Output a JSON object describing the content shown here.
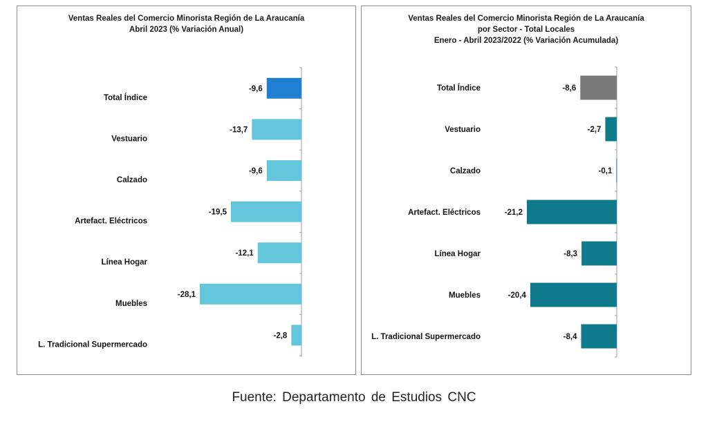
{
  "charts": [
    {
      "title_lines": [
        "Ventas Reales del Comercio Minorista  Región de La Araucanía",
        "Abril 2023 (% Variación Anual)"
      ]
    },
    {
      "title_lines": [
        "Ventas Reales del Comercio Minorista Región de La Araucanía",
        "por Sector - Total Locales",
        "Enero - Abril 2023/2022 (% Variación Acumulada)"
      ]
    }
  ],
  "chart_data": [
    {
      "type": "bar",
      "orientation": "horizontal",
      "title": "Ventas Reales del Comercio Minorista  Región de La Araucanía Abril 2023 (% Variación Anual)",
      "categories": [
        "Total Índice",
        "Vestuario",
        "Calzado",
        "Artefact. Eléctricos",
        "Línea Hogar",
        "Muebles",
        "L. Tradicional Supermercado"
      ],
      "values": [
        -9.6,
        -13.7,
        -9.6,
        -19.5,
        -12.1,
        -28.1,
        -2.8
      ],
      "value_labels": [
        "-9,6",
        "-13,7",
        "-9,6",
        "-19,5",
        "-12,1",
        "-28,1",
        "-2,8"
      ],
      "colors": [
        "#1f7fd1",
        "#63c6db",
        "#63c6db",
        "#63c6db",
        "#63c6db",
        "#63c6db",
        "#63c6db"
      ],
      "xlim": [
        -28.1,
        0
      ],
      "grid": false,
      "legend": "none"
    },
    {
      "type": "bar",
      "orientation": "horizontal",
      "title": "Ventas Reales del Comercio Minorista Región de La Araucanía por Sector - Total Locales Enero - Abril 2023/2022 (% Variación Acumulada)",
      "categories": [
        "Total Índice",
        "Vestuario",
        "Calzado",
        "Artefact. Eléctricos",
        "Línea Hogar",
        "Muebles",
        "L. Tradicional Supermercado"
      ],
      "values": [
        -8.6,
        -2.7,
        -0.1,
        -21.2,
        -8.3,
        -20.4,
        -8.4
      ],
      "value_labels": [
        "-8,6",
        "-2,7",
        "-0,1",
        "-21,2",
        "-8,3",
        "-20,4",
        "-8,4"
      ],
      "colors": [
        "#7a7a7a",
        "#0e7a8c",
        "#0e7a8c",
        "#0e7a8c",
        "#0e7a8c",
        "#0e7a8c",
        "#0e7a8c"
      ],
      "xlim": [
        -21.2,
        0
      ],
      "grid": false,
      "legend": "none"
    }
  ],
  "source": "Fuente: Departamento de Estudios CNC"
}
